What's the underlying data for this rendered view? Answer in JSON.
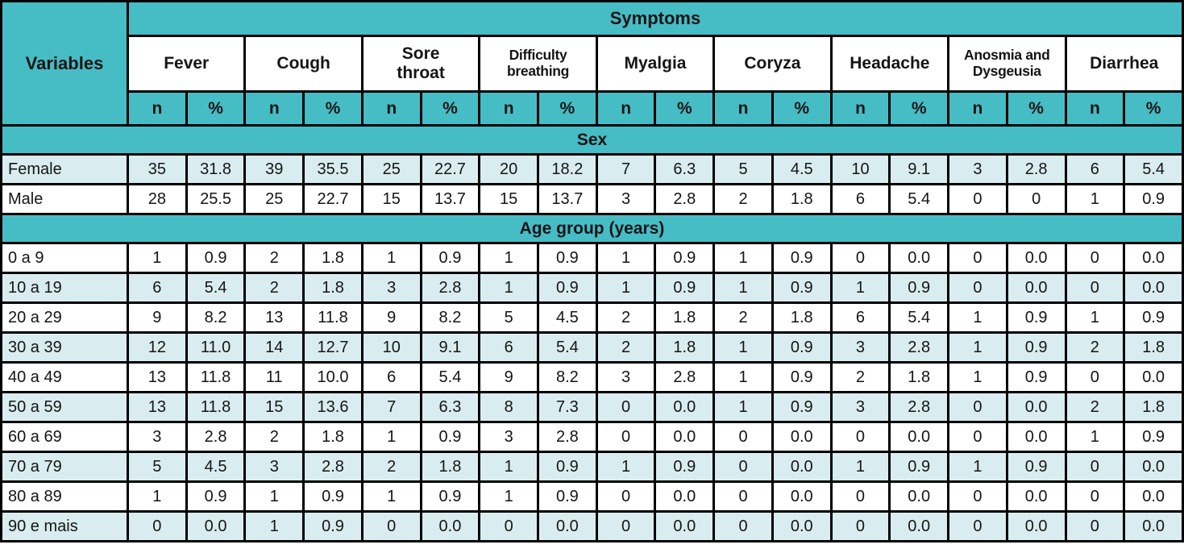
{
  "colors": {
    "header_teal": "#46bcc5",
    "row_shade": "#d9edf0",
    "border": "#000000",
    "text": "#151515"
  },
  "chart_data": {
    "type": "table",
    "title": "Symptoms",
    "row_header": "Variables",
    "column_groups": [
      "Fever",
      "Cough",
      "Sore\nthroat",
      "Difficulty\nbreathing",
      "Myalgia",
      "Coryza",
      "Headache",
      "Anosmia and\nDysgeusia",
      "Diarrhea"
    ],
    "subcolumns": [
      "n",
      "%"
    ],
    "sections": [
      {
        "label": "Sex",
        "start_shaded": true,
        "rows": [
          {
            "label": "Female",
            "cells": [
              "35",
              "31.8",
              "39",
              "35.5",
              "25",
              "22.7",
              "20",
              "18.2",
              "7",
              "6.3",
              "5",
              "4.5",
              "10",
              "9.1",
              "3",
              "2.8",
              "6",
              "5.4"
            ]
          },
          {
            "label": "Male",
            "cells": [
              "28",
              "25.5",
              "25",
              "22.7",
              "15",
              "13.7",
              "15",
              "13.7",
              "3",
              "2.8",
              "2",
              "1.8",
              "6",
              "5.4",
              "0",
              "0",
              "1",
              "0.9"
            ]
          }
        ]
      },
      {
        "label": "Age group (years)",
        "start_shaded": false,
        "rows": [
          {
            "label": "0 a 9",
            "cells": [
              "1",
              "0.9",
              "2",
              "1.8",
              "1",
              "0.9",
              "1",
              "0.9",
              "1",
              "0.9",
              "1",
              "0.9",
              "0",
              "0.0",
              "0",
              "0.0",
              "0",
              "0.0"
            ]
          },
          {
            "label": "10 a 19",
            "cells": [
              "6",
              "5.4",
              "2",
              "1.8",
              "3",
              "2.8",
              "1",
              "0.9",
              "1",
              "0.9",
              "1",
              "0.9",
              "1",
              "0.9",
              "0",
              "0.0",
              "0",
              "0.0"
            ]
          },
          {
            "label": "20 a 29",
            "cells": [
              "9",
              "8.2",
              "13",
              "11.8",
              "9",
              "8.2",
              "5",
              "4.5",
              "2",
              "1.8",
              "2",
              "1.8",
              "6",
              "5.4",
              "1",
              "0.9",
              "1",
              "0.9"
            ]
          },
          {
            "label": "30 a 39",
            "cells": [
              "12",
              "11.0",
              "14",
              "12.7",
              "10",
              "9.1",
              "6",
              "5.4",
              "2",
              "1.8",
              "1",
              "0.9",
              "3",
              "2.8",
              "1",
              "0.9",
              "2",
              "1.8"
            ]
          },
          {
            "label": "40 a 49",
            "cells": [
              "13",
              "11.8",
              "11",
              "10.0",
              "6",
              "5.4",
              "9",
              "8.2",
              "3",
              "2.8",
              "1",
              "0.9",
              "2",
              "1.8",
              "1",
              "0.9",
              "0",
              "0.0"
            ]
          },
          {
            "label": "50 a 59",
            "cells": [
              "13",
              "11.8",
              "15",
              "13.6",
              "7",
              "6.3",
              "8",
              "7.3",
              "0",
              "0.0",
              "1",
              "0.9",
              "3",
              "2.8",
              "0",
              "0.0",
              "2",
              "1.8"
            ]
          },
          {
            "label": "60 a 69",
            "cells": [
              "3",
              "2.8",
              "2",
              "1.8",
              "1",
              "0.9",
              "3",
              "2.8",
              "0",
              "0.0",
              "0",
              "0.0",
              "0",
              "0.0",
              "0",
              "0.0",
              "1",
              "0.9"
            ]
          },
          {
            "label": "70 a 79",
            "cells": [
              "5",
              "4.5",
              "3",
              "2.8",
              "2",
              "1.8",
              "1",
              "0.9",
              "1",
              "0.9",
              "0",
              "0.0",
              "1",
              "0.9",
              "1",
              "0.9",
              "0",
              "0.0"
            ]
          },
          {
            "label": "80 a 89",
            "cells": [
              "1",
              "0.9",
              "1",
              "0.9",
              "1",
              "0.9",
              "1",
              "0.9",
              "0",
              "0.0",
              "0",
              "0.0",
              "0",
              "0.0",
              "0",
              "0.0",
              "0",
              "0.0"
            ]
          },
          {
            "label": "90 e mais",
            "cells": [
              "0",
              "0.0",
              "1",
              "0.9",
              "0",
              "0.0",
              "0",
              "0.0",
              "0",
              "0.0",
              "0",
              "0.0",
              "0",
              "0.0",
              "0",
              "0.0",
              "0",
              "0.0"
            ]
          }
        ]
      }
    ]
  }
}
